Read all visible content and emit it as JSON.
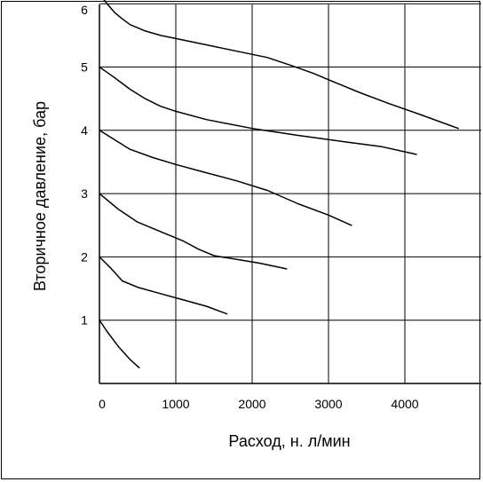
{
  "chart_data": {
    "type": "line",
    "title": "",
    "xlabel": "Расход, н. л/мин",
    "ylabel": "Вторичное давление, бар",
    "xlim": [
      0,
      5000
    ],
    "ylim": [
      0,
      6
    ],
    "xticks": [
      "0",
      "1000",
      "2000",
      "3000",
      "4000"
    ],
    "yticks": [
      "1",
      "2",
      "3",
      "4",
      "5",
      "6"
    ],
    "grid": true,
    "legend": "none",
    "line_color": "#000000",
    "series": [
      {
        "points": [
          [
            0,
            1.0
          ],
          [
            100,
            0.82
          ],
          [
            250,
            0.58
          ],
          [
            400,
            0.38
          ],
          [
            520,
            0.25
          ]
        ]
      },
      {
        "points": [
          [
            0,
            2.0
          ],
          [
            150,
            1.82
          ],
          [
            300,
            1.62
          ],
          [
            500,
            1.52
          ],
          [
            800,
            1.42
          ],
          [
            1100,
            1.32
          ],
          [
            1400,
            1.22
          ],
          [
            1670,
            1.1
          ]
        ]
      },
      {
        "points": [
          [
            0,
            3.0
          ],
          [
            250,
            2.75
          ],
          [
            500,
            2.55
          ],
          [
            800,
            2.4
          ],
          [
            1100,
            2.25
          ],
          [
            1300,
            2.12
          ],
          [
            1500,
            2.02
          ],
          [
            1800,
            1.96
          ],
          [
            2100,
            1.9
          ],
          [
            2450,
            1.81
          ]
        ]
      },
      {
        "points": [
          [
            0,
            4.0
          ],
          [
            200,
            3.85
          ],
          [
            400,
            3.7
          ],
          [
            700,
            3.57
          ],
          [
            1000,
            3.46
          ],
          [
            1400,
            3.33
          ],
          [
            1800,
            3.2
          ],
          [
            2200,
            3.05
          ],
          [
            2600,
            2.84
          ],
          [
            3000,
            2.66
          ],
          [
            3300,
            2.5
          ]
        ]
      },
      {
        "points": [
          [
            0,
            5.0
          ],
          [
            200,
            4.83
          ],
          [
            400,
            4.65
          ],
          [
            600,
            4.5
          ],
          [
            800,
            4.38
          ],
          [
            1000,
            4.3
          ],
          [
            1400,
            4.17
          ],
          [
            2000,
            4.03
          ],
          [
            2600,
            3.92
          ],
          [
            3200,
            3.82
          ],
          [
            3700,
            3.74
          ],
          [
            4150,
            3.62
          ]
        ]
      },
      {
        "points": [
          [
            0,
            6.15
          ],
          [
            100,
            6.0
          ],
          [
            200,
            5.86
          ],
          [
            300,
            5.76
          ],
          [
            400,
            5.67
          ],
          [
            600,
            5.57
          ],
          [
            800,
            5.5
          ],
          [
            1000,
            5.45
          ],
          [
            1400,
            5.35
          ],
          [
            1800,
            5.25
          ],
          [
            2200,
            5.15
          ],
          [
            2500,
            5.03
          ],
          [
            2800,
            4.9
          ],
          [
            3000,
            4.8
          ],
          [
            3400,
            4.6
          ],
          [
            3800,
            4.42
          ],
          [
            4200,
            4.25
          ],
          [
            4700,
            4.03
          ]
        ]
      }
    ]
  }
}
